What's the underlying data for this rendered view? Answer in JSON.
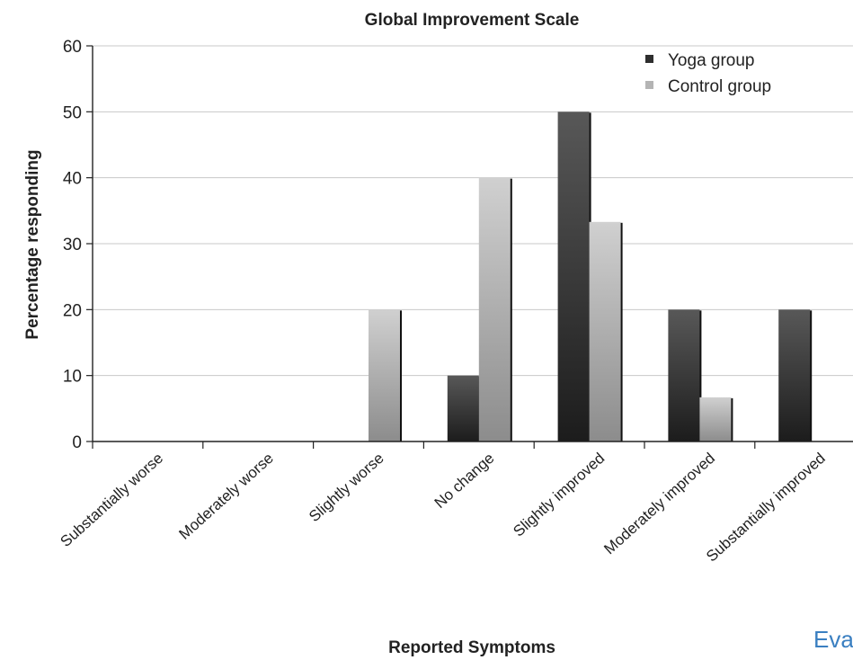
{
  "chart_data": {
    "type": "bar",
    "title": "Global Improvement Scale",
    "xlabel": "Reported Symptoms",
    "ylabel": "Percentage responding",
    "ylim": [
      0,
      60
    ],
    "yticks": [
      0,
      10,
      20,
      30,
      40,
      50,
      60
    ],
    "grid": true,
    "legend_position": "top-right",
    "categories": [
      "Substantially worse",
      "Moderately worse",
      "Slightly worse",
      "No change",
      "Slightly improved",
      "Moderately improved",
      "Substantially improved"
    ],
    "series": [
      {
        "name": "Yoga group",
        "color": "#2e2e2e",
        "values": [
          0,
          0,
          0,
          10,
          50,
          20,
          20
        ]
      },
      {
        "name": "Control group",
        "color": "#b4b4b4",
        "values": [
          0,
          0,
          20,
          40,
          33.3,
          6.7,
          0
        ]
      }
    ]
  },
  "overlay_text": "Eva"
}
